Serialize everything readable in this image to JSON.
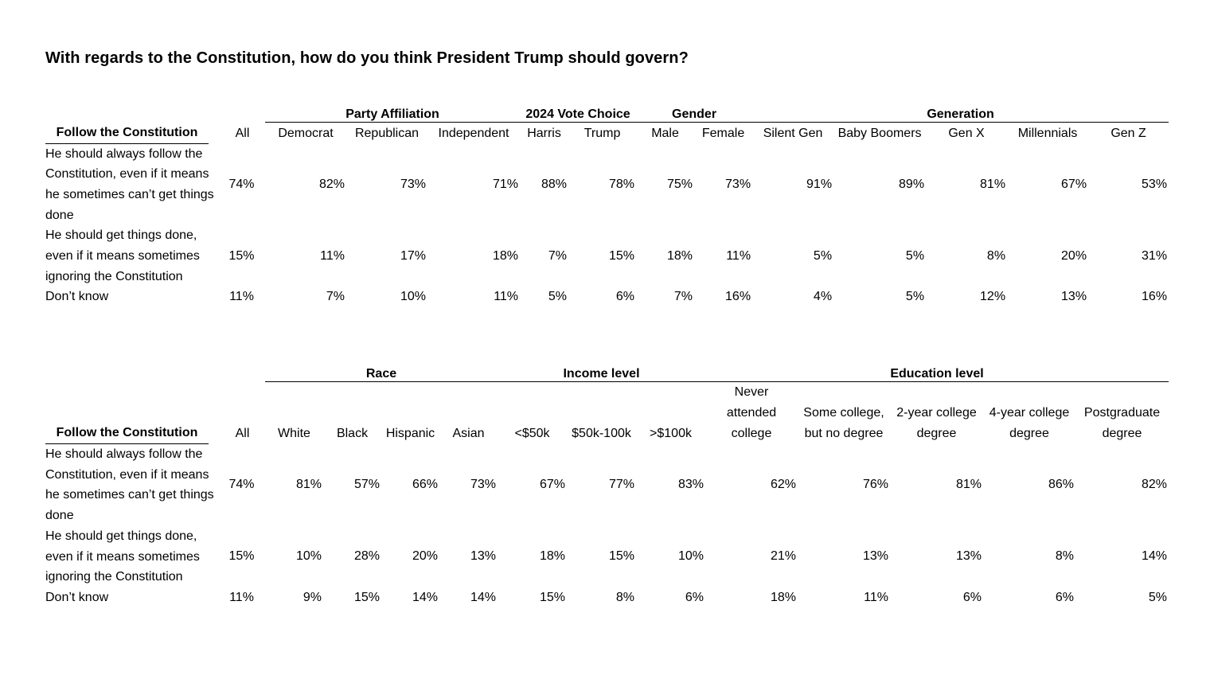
{
  "title": "With regards to the Constitution, how do you think President Trump should govern?",
  "table1": {
    "groups": [
      "Party Affiliation",
      "2024 Vote Choice",
      "Gender",
      "Generation"
    ],
    "row_header": "Follow the Constitution",
    "columns": [
      "All",
      "Democrat",
      "Republican",
      "Independent",
      "Harris",
      "Trump",
      "Male",
      "Female",
      "Silent Gen",
      "Baby Boomers",
      "Gen X",
      "Millennials",
      "Gen Z"
    ],
    "rows": [
      {
        "label": "He should always follow the Constitution, even if it means he sometimes can’t get things done",
        "values": [
          "74%",
          "82%",
          "73%",
          "71%",
          "88%",
          "78%",
          "75%",
          "73%",
          "91%",
          "89%",
          "81%",
          "67%",
          "53%"
        ]
      },
      {
        "label": "He should get things done, even if it means sometimes ignoring the Constitution",
        "values": [
          "15%",
          "11%",
          "17%",
          "18%",
          "7%",
          "15%",
          "18%",
          "11%",
          "5%",
          "5%",
          "8%",
          "20%",
          "31%"
        ]
      },
      {
        "label": "Don’t know",
        "values": [
          "11%",
          "7%",
          "10%",
          "11%",
          "5%",
          "6%",
          "7%",
          "16%",
          "4%",
          "5%",
          "12%",
          "13%",
          "16%"
        ]
      }
    ]
  },
  "table2": {
    "groups": [
      "Race",
      "Income level",
      "Education level"
    ],
    "row_header": "Follow the Constitution",
    "columns": [
      "All",
      "White",
      "Black",
      "Hispanic",
      "Asian",
      "<$50k",
      "$50k-100k",
      ">$100k",
      "Never attended college",
      "Some college, but no degree",
      "2-year college degree",
      "4-year college degree",
      "Postgraduate degree"
    ],
    "rows": [
      {
        "label": "He should always follow the Constitution, even if it means he sometimes can’t get things done",
        "values": [
          "74%",
          "81%",
          "57%",
          "66%",
          "73%",
          "67%",
          "77%",
          "83%",
          "62%",
          "76%",
          "81%",
          "86%",
          "82%"
        ]
      },
      {
        "label": "He should get things done, even if it means sometimes ignoring the Constitution",
        "values": [
          "15%",
          "10%",
          "28%",
          "20%",
          "13%",
          "18%",
          "15%",
          "10%",
          "21%",
          "13%",
          "13%",
          "8%",
          "14%"
        ]
      },
      {
        "label": "Don’t know",
        "values": [
          "11%",
          "9%",
          "15%",
          "14%",
          "14%",
          "15%",
          "8%",
          "6%",
          "18%",
          "11%",
          "6%",
          "6%",
          "5%"
        ]
      }
    ]
  }
}
